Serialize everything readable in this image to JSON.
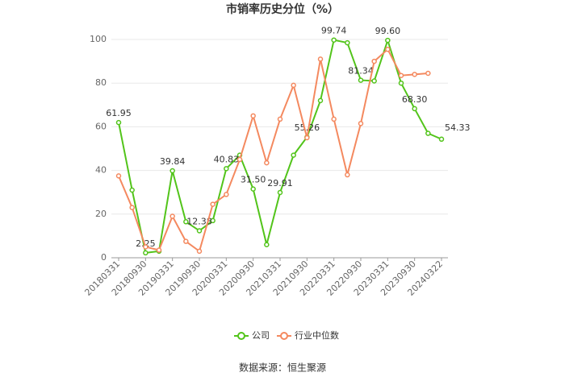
{
  "chart_data": {
    "type": "line",
    "title": "市销率历史分位（%）",
    "source": "数据来源：恒生聚源",
    "categories": [
      "20180331",
      null,
      "20180930",
      null,
      "20190331",
      null,
      "20190930",
      null,
      "20200331",
      null,
      "20200930",
      null,
      "20210331",
      null,
      "20210930",
      null,
      "20220331",
      null,
      "20220930",
      null,
      "20230331",
      null,
      "20230930",
      null,
      "20240322"
    ],
    "series": [
      {
        "name": "公司",
        "color": "#52c41a",
        "values": [
          61.95,
          31,
          2.25,
          3,
          39.84,
          16.5,
          12.38,
          17,
          40.83,
          47,
          31.5,
          6,
          29.91,
          47,
          55.26,
          72,
          99.74,
          98.5,
          81.34,
          81,
          99.6,
          80,
          68.3,
          57,
          54.33
        ],
        "value_labels": [
          "61.95",
          null,
          "2.25",
          null,
          "39.84",
          null,
          "12.38",
          null,
          "40.83",
          null,
          "31.50",
          null,
          "29.91",
          null,
          "55.26",
          null,
          "99.74",
          null,
          "81.34",
          null,
          "99.60",
          null,
          "68.30",
          null,
          "54.33"
        ]
      },
      {
        "name": "行业中位数",
        "color": "#f4895f",
        "values": [
          37.5,
          23,
          5,
          3.5,
          19,
          7.5,
          3,
          24.5,
          29,
          45,
          65,
          43.5,
          63.5,
          79,
          55,
          91,
          63.5,
          38,
          61.5,
          90,
          95.5,
          83.5,
          84,
          84.5,
          null
        ]
      }
    ],
    "ylim": [
      0,
      100
    ],
    "yticks": [
      0,
      20,
      40,
      60,
      80,
      100
    ],
    "grid": true
  }
}
